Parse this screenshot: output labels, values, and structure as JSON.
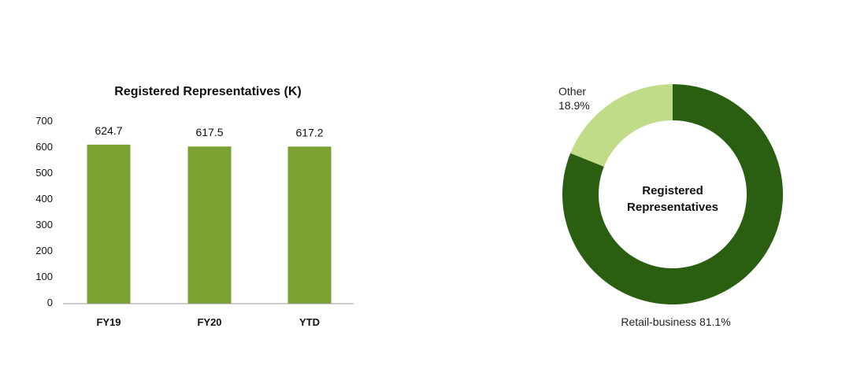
{
  "chart_data": [
    {
      "type": "bar",
      "title": "Registered Representatives (K)",
      "categories": [
        "FY19",
        "FY20",
        "YTD"
      ],
      "values": [
        624.7,
        617.5,
        617.2
      ],
      "data_labels": [
        "624.7",
        "617.5",
        "617.2"
      ],
      "yticks": [
        "0",
        "100",
        "200",
        "300",
        "400",
        "500",
        "600",
        "700"
      ],
      "ylim": [
        0,
        700
      ],
      "grid": false,
      "color": "#7aa232"
    },
    {
      "type": "pie",
      "subtype": "donut",
      "center_label_line1": "Registered",
      "center_label_line2": "Representatives",
      "slices": [
        {
          "label": "Retail-business 81.1%",
          "value": 81.1,
          "color": "#2a5f12"
        },
        {
          "label_line1": "Other",
          "label_line2": "18.9%",
          "value": 18.9,
          "color": "#c0dc88"
        }
      ]
    }
  ]
}
